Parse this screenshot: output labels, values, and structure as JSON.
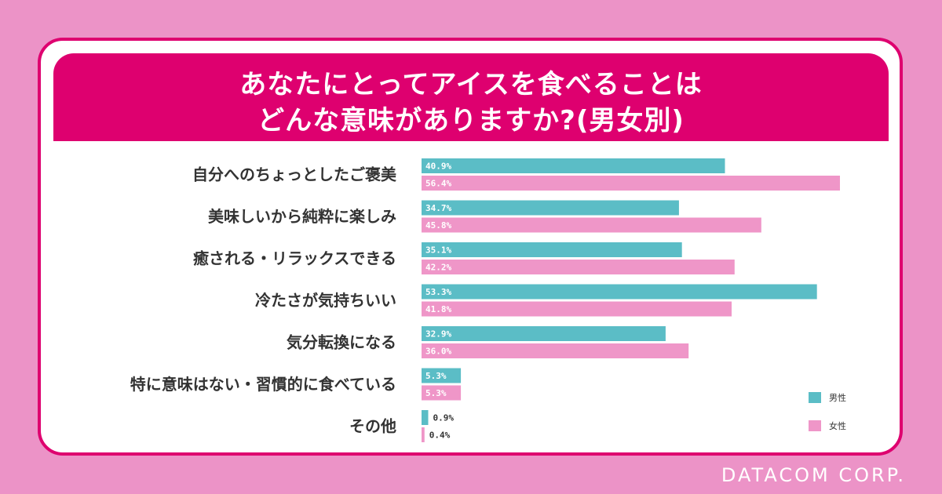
{
  "title": {
    "line1": "あなたにとってアイスを食べることは",
    "line2": "どんな意味がありますか?(男女別)"
  },
  "brand": "DATACOM CORP.",
  "colors": {
    "background": "#ec93c7",
    "accent": "#de006f",
    "male": "#5bbdc6",
    "female": "#ef96c8"
  },
  "chart_data": {
    "type": "bar",
    "orientation": "horizontal",
    "categories": [
      "自分へのちょっとしたご褒美",
      "美味しいから純粋に楽しみ",
      "癒される・リラックスできる",
      "冷たさが気持ちいい",
      "気分転換になる",
      "特に意味はない・習慣的に食べている",
      "その他"
    ],
    "series": [
      {
        "name": "男性",
        "values": [
          40.9,
          34.7,
          35.1,
          53.3,
          32.9,
          5.3,
          0.9
        ],
        "labels": [
          "40.9%",
          "34.7%",
          "35.1%",
          "53.3%",
          "32.9%",
          "5.3%",
          "0.9%"
        ]
      },
      {
        "name": "女性",
        "values": [
          56.4,
          45.8,
          42.2,
          41.8,
          36.0,
          5.3,
          0.4
        ],
        "labels": [
          "56.4%",
          "45.8%",
          "42.2%",
          "41.8%",
          "36.0%",
          "5.3%",
          "0.4%"
        ]
      }
    ],
    "xlim": [
      0,
      60
    ],
    "grid": false,
    "legend_position": "bottom-right"
  }
}
